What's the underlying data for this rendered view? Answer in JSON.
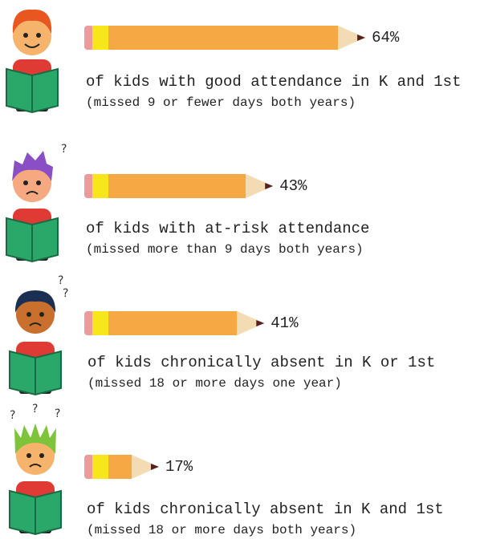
{
  "chart_data": {
    "type": "bar",
    "categories": [
      "of kids with good attendance in K and 1st",
      "of kids with at-risk attendance",
      "of kids chronically absent in K or 1st",
      "of kids chronically absent in K and 1st"
    ],
    "subtitles": [
      "(missed 9 or fewer days both years)",
      "(missed more than 9 days both years)",
      "(missed 18 or more days one year)",
      "(missed 18 or more days both years)"
    ],
    "values": [
      64,
      43,
      41,
      17
    ],
    "value_labels": [
      "64%",
      "43%",
      "41%",
      "17%"
    ],
    "color": "#f5a844"
  }
}
